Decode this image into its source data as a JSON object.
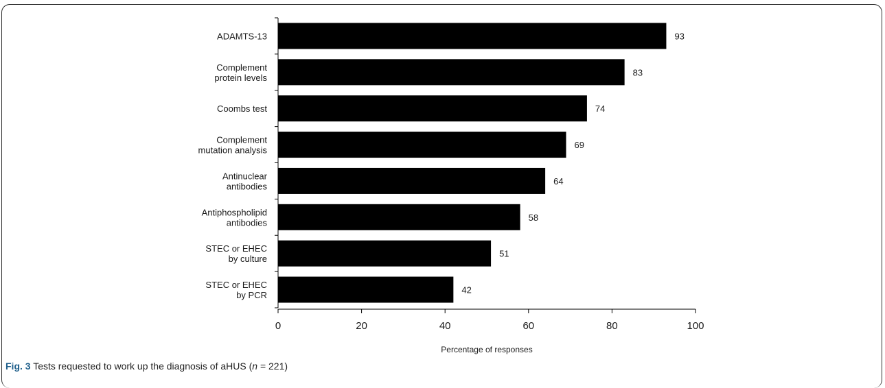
{
  "chart_data": {
    "type": "bar",
    "orientation": "horizontal",
    "categories": [
      [
        "ADAMTS-13"
      ],
      [
        "Complement",
        "protein levels"
      ],
      [
        "Coombs test"
      ],
      [
        "Complement",
        "mutation analysis"
      ],
      [
        "Antinuclear",
        "antibodies"
      ],
      [
        "Antiphospholipid",
        "antibodies"
      ],
      [
        "STEC or EHEC",
        "by culture"
      ],
      [
        "STEC or EHEC",
        "by PCR"
      ]
    ],
    "values": [
      93,
      83,
      74,
      69,
      64,
      58,
      51,
      42
    ],
    "xlabel": "Percentage of responses",
    "xlim": [
      0,
      100
    ],
    "xticks": [
      0,
      20,
      40,
      60,
      80,
      100
    ],
    "bar_color": "#000000",
    "grid": false,
    "data_labels": true
  },
  "caption": {
    "fig_label": "Fig. 3",
    "text_before_n": " Tests requested to work up the diagnosis of aHUS (",
    "n_symbol": "n",
    "text_after_n": " = 221)"
  }
}
